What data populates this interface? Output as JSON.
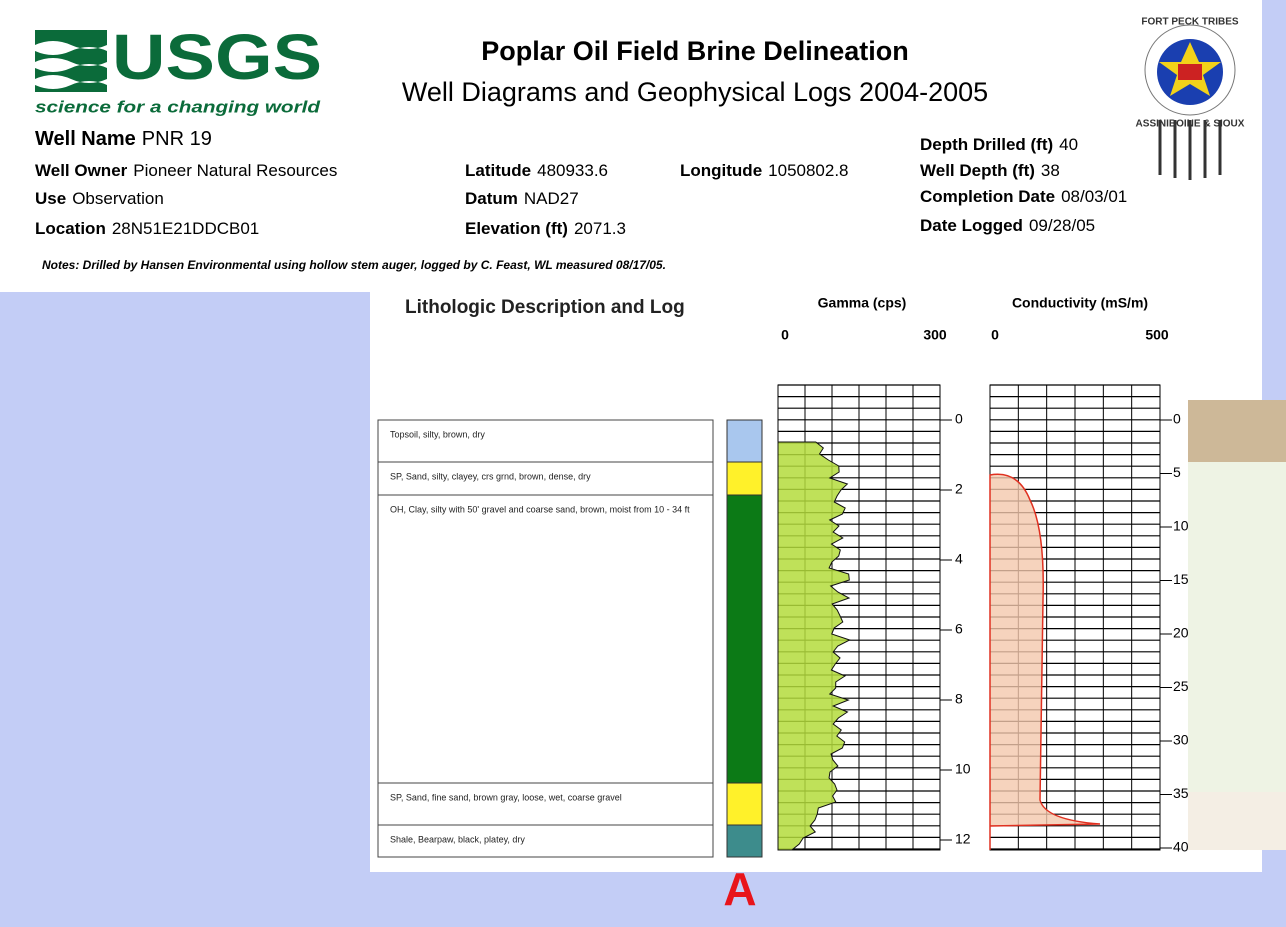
{
  "header": {
    "logo": "USGS",
    "tagline": "science for a changing world",
    "title": "Poplar Oil Field Brine Delineation",
    "subtitle": "Well Diagrams and Geophysical Logs 2004-2005",
    "seal_top": "FORT PECK TRIBES",
    "seal_bottom": "ASSINIBOINE & SIOUX"
  },
  "well": [
    {
      "label": "Well Name",
      "value": "PNR 19"
    },
    {
      "label": "Well Owner",
      "value": "Pioneer Natural Resources"
    },
    {
      "label": "Use",
      "value": "Observation"
    },
    {
      "label": "Location",
      "value": "28N51E21DDCB01"
    },
    {
      "label": "Latitude",
      "value": "480933.6"
    },
    {
      "label": "Datum",
      "value": "NAD27"
    },
    {
      "label": "Elevation (ft)",
      "value": "2071.3"
    },
    {
      "label": "Longitude",
      "value": "1050802.8"
    },
    {
      "label": "Depth Drilled (ft)",
      "value": "40"
    },
    {
      "label": "Well Depth (ft)",
      "value": "38"
    },
    {
      "label": "Completion Date",
      "value": "08/03/01"
    },
    {
      "label": "Date Logged",
      "value": "09/28/05"
    }
  ],
  "notes": "Notes:  Drilled by Hansen Environmental using hollow stem auger, logged by C. Feast, WL measured 08/17/05.",
  "log": {
    "lithology_title": "Lithologic Description and Log",
    "gamma": {
      "title": "Gamma (cps)",
      "min": "0",
      "max": "300"
    },
    "conductivity": {
      "title": "Conductivity (mS/m)",
      "min": "0",
      "max": "500"
    },
    "lithology": [
      "Topsoil, silty, brown, dry",
      "SP, Sand, silty, clayey, crs grnd, brown, dense, dry",
      "OH, Clay, silty with 50' gravel and coarse sand, brown, moist from 10 - 34 ft",
      "SP, Sand, fine sand, brown gray, loose, wet, coarse gravel",
      "Shale, Bearpaw, black, platey, dry"
    ],
    "depth_m": [
      0,
      2,
      4,
      6,
      8,
      10,
      12
    ],
    "depth_ft": [
      0,
      5,
      10,
      15,
      20,
      25,
      30,
      35,
      40
    ]
  },
  "label": "A"
}
